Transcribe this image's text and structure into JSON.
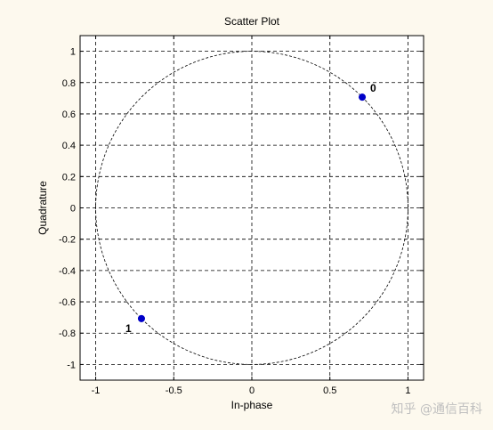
{
  "chart_data": {
    "type": "scatter",
    "title": "Scatter Plot",
    "xlabel": "In-phase",
    "ylabel": "Quadrature",
    "xlim": [
      -1.1,
      1.1
    ],
    "ylim": [
      -1.1,
      1.1
    ],
    "xticks": [
      -1,
      -0.5,
      0,
      0.5,
      1
    ],
    "xtick_labels": [
      "-1",
      "-0.5",
      "0",
      "0.5",
      "1"
    ],
    "yticks": [
      1,
      0.8,
      0.6,
      0.4,
      0.2,
      0,
      -0.2,
      -0.4,
      -0.6,
      -0.8,
      -1
    ],
    "ytick_labels": [
      "1",
      "0.8",
      "0.6",
      "0.4",
      "0.2",
      "0",
      "-0.2",
      "-0.4",
      "-0.6",
      "-0.8",
      "-1"
    ],
    "grid": true,
    "grid_style": "dashed",
    "reference_circle": {
      "center": [
        0,
        0
      ],
      "radius": 1,
      "style": "dashed"
    },
    "points": [
      {
        "x": 0.707,
        "y": 0.707,
        "label": "0"
      },
      {
        "x": -0.707,
        "y": -0.707,
        "label": "1"
      }
    ],
    "point_color": "#0000c8",
    "axes_background": "#ffffff"
  },
  "watermark": "知乎 @通信百科"
}
